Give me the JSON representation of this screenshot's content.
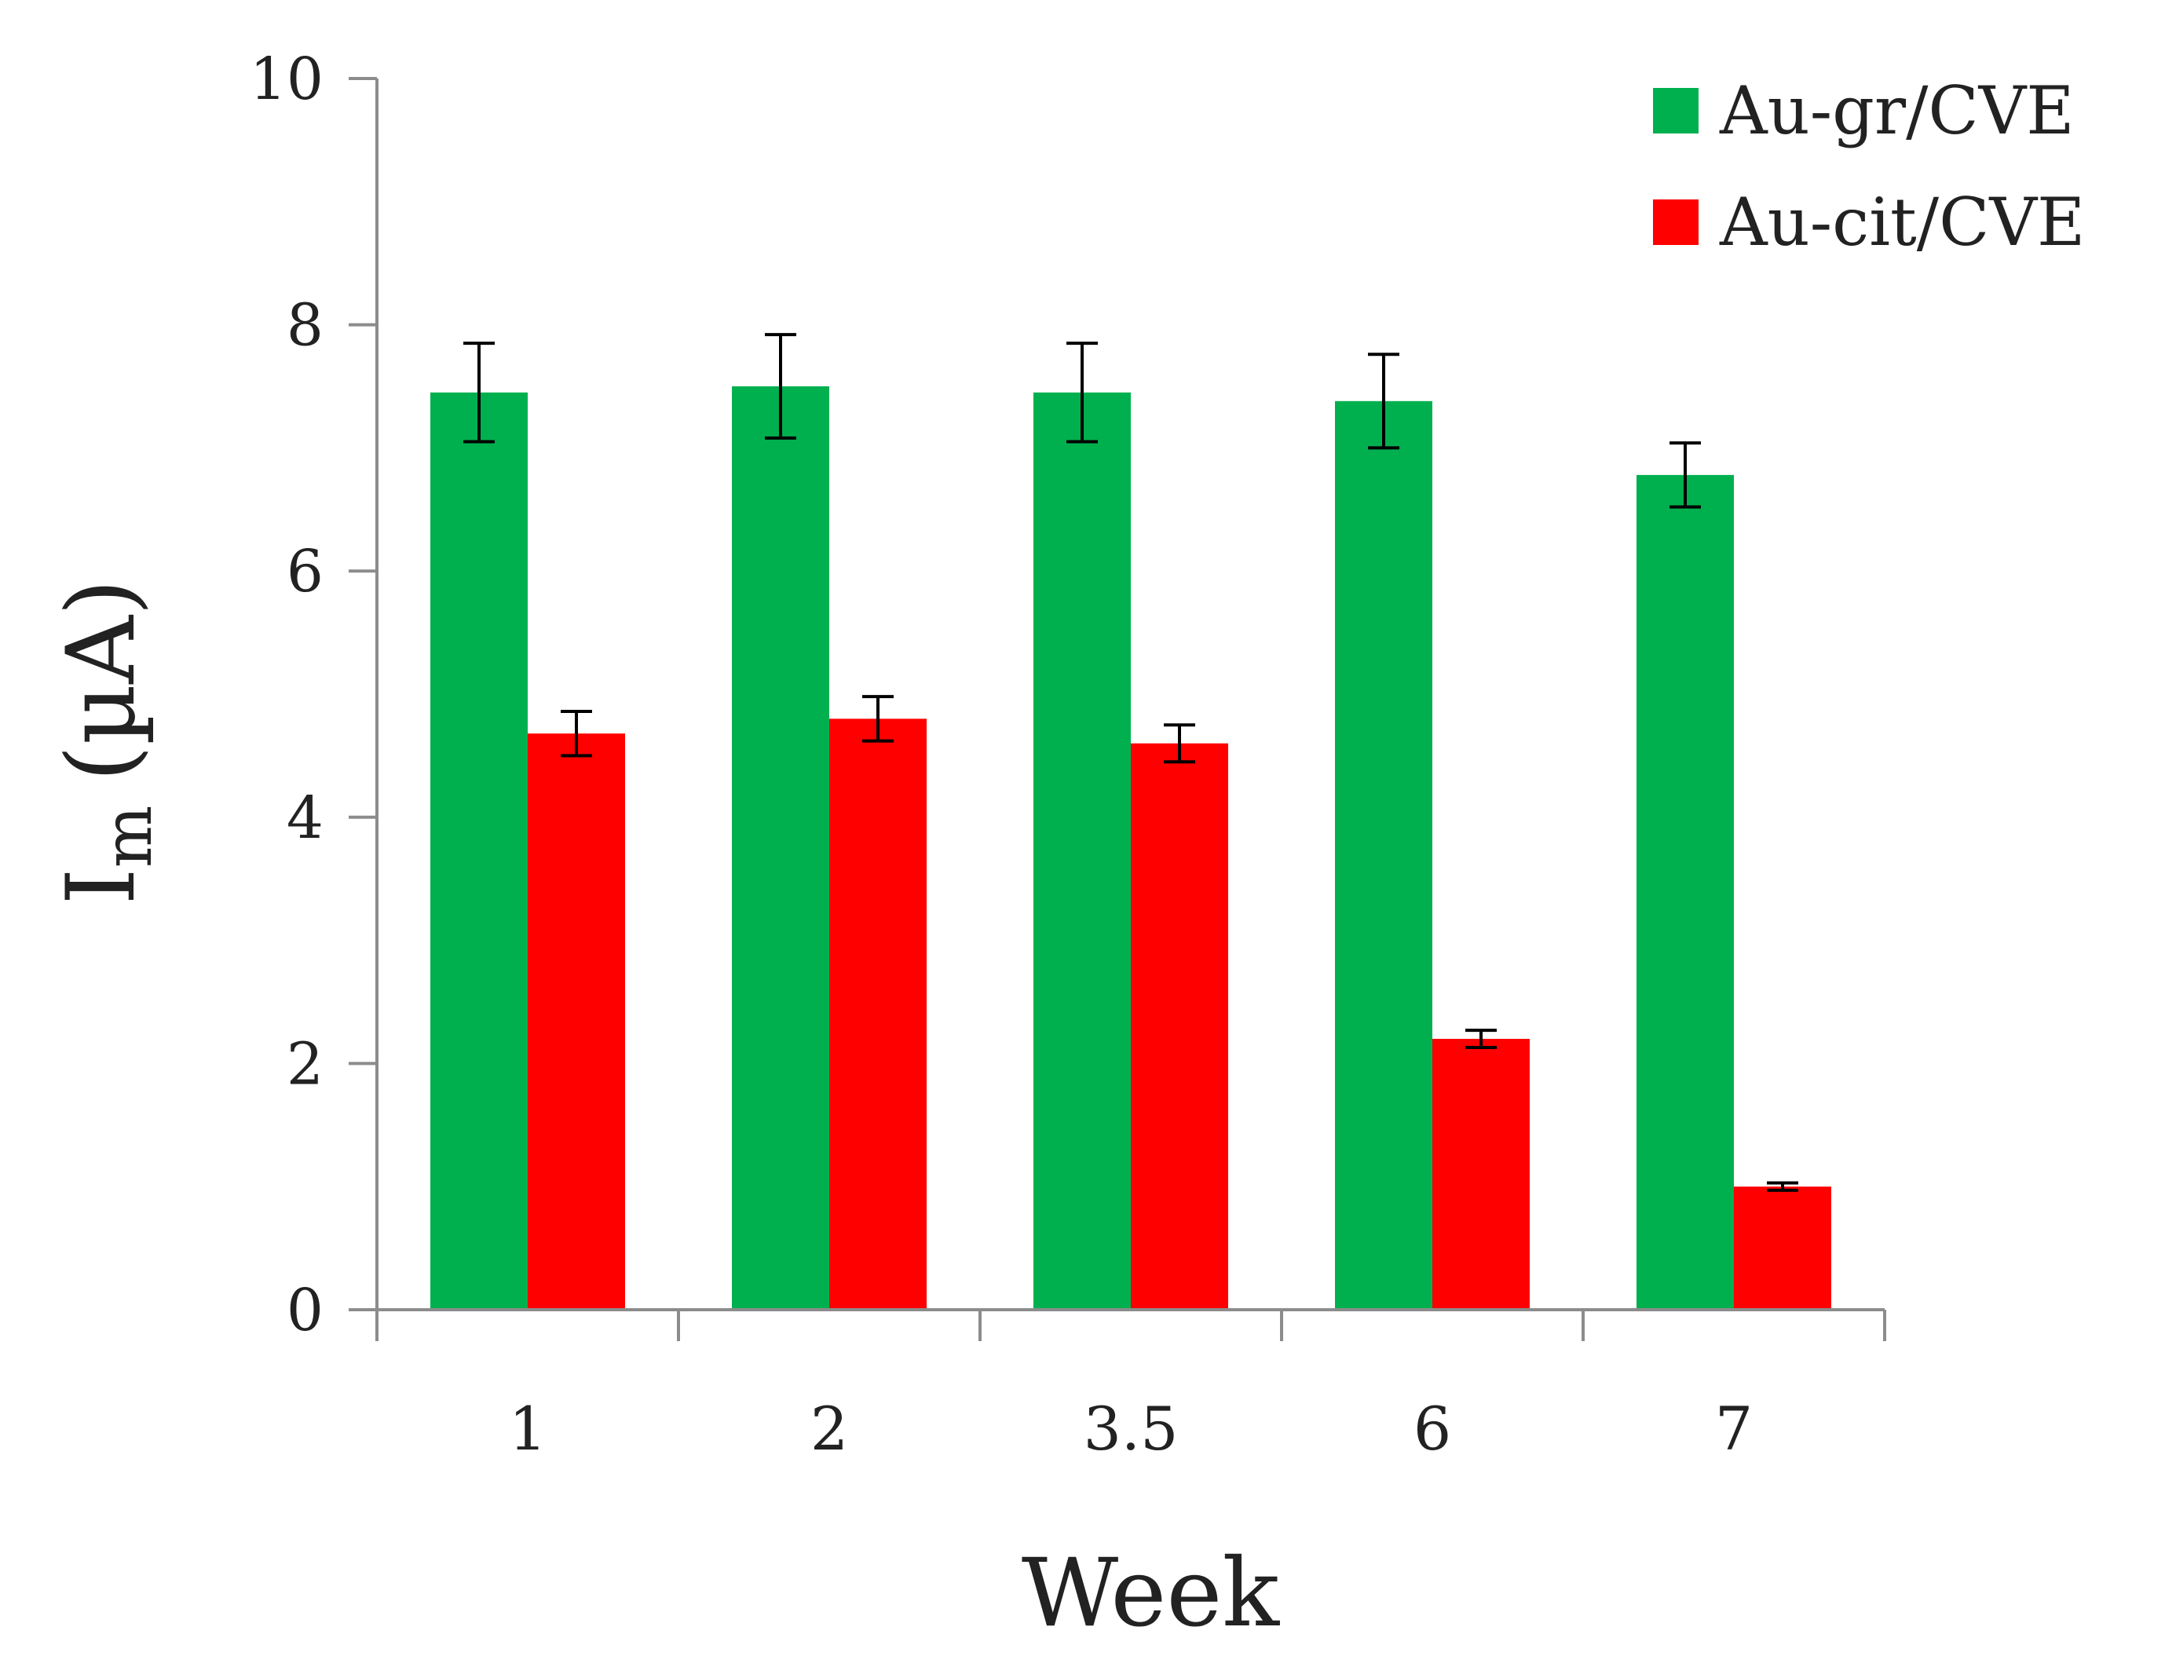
{
  "chart_data": {
    "type": "bar",
    "title": "",
    "xlabel": "Week",
    "ylabel": {
      "main": "I",
      "subscript": "m",
      "unit": "(µA)"
    },
    "categories": [
      "1",
      "2",
      "3.5",
      "6",
      "7"
    ],
    "ylim": [
      0,
      10
    ],
    "yticks": [
      "0",
      "2",
      "4",
      "6",
      "8",
      "10"
    ],
    "grid": false,
    "legend_position": "top-right",
    "series": [
      {
        "name": "Au-gr/CVE",
        "color": "#00b04f",
        "values": [
          7.45,
          7.5,
          7.45,
          7.38,
          6.78
        ],
        "errors": [
          0.4,
          0.42,
          0.4,
          0.38,
          0.26
        ]
      },
      {
        "name": "Au-cit/CVE",
        "color": "#ff0000",
        "values": [
          4.68,
          4.8,
          4.6,
          2.2,
          1.0
        ],
        "errors": [
          0.18,
          0.18,
          0.15,
          0.07,
          0.03
        ]
      }
    ]
  }
}
